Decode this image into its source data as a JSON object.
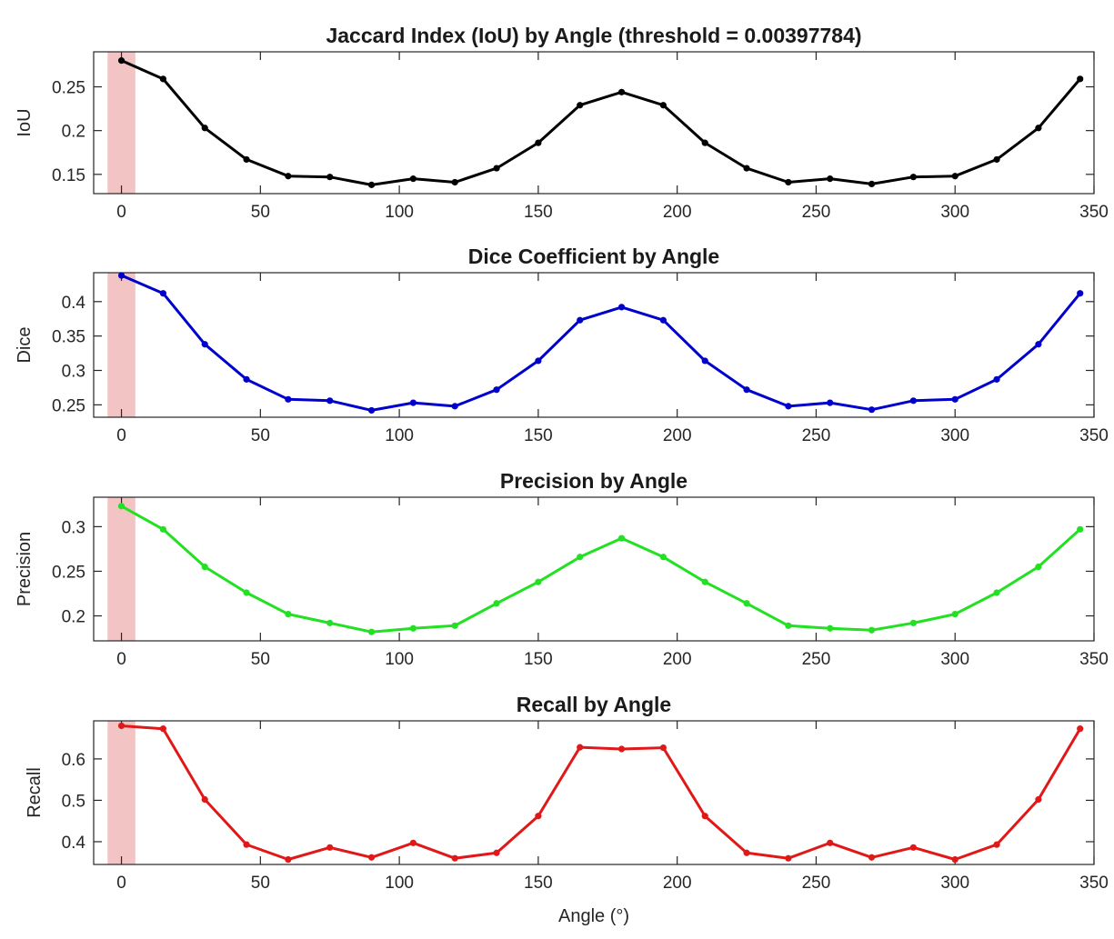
{
  "chart_data": [
    {
      "type": "line",
      "title": "Jaccard Index (IoU) by Angle (threshold = 0.00397784)",
      "xlabel": "",
      "ylabel": "IoU",
      "xlim": [
        -10,
        350
      ],
      "ylim": [
        0.128,
        0.29
      ],
      "xticks": [
        0,
        50,
        100,
        150,
        200,
        250,
        300,
        350
      ],
      "xtick_labels": [
        "0",
        "50",
        "100",
        "150",
        "200",
        "250",
        "300",
        "350"
      ],
      "yticks": [
        0.15,
        0.2,
        0.25
      ],
      "ytick_labels": [
        "0.15",
        "0.2",
        "0.25"
      ],
      "color": "#000000",
      "highlight": [
        -5,
        5
      ],
      "x": [
        0,
        15,
        30,
        45,
        60,
        75,
        90,
        105,
        120,
        135,
        150,
        165,
        180,
        195,
        210,
        225,
        240,
        255,
        270,
        285,
        300,
        315,
        330,
        345
      ],
      "values": [
        0.28,
        0.259,
        0.203,
        0.167,
        0.148,
        0.147,
        0.138,
        0.145,
        0.141,
        0.157,
        0.186,
        0.229,
        0.244,
        0.229,
        0.186,
        0.157,
        0.141,
        0.145,
        0.139,
        0.147,
        0.148,
        0.167,
        0.203,
        0.259
      ]
    },
    {
      "type": "line",
      "title": "Dice Coefficient by Angle",
      "xlabel": "",
      "ylabel": "Dice",
      "xlim": [
        -10,
        350
      ],
      "ylim": [
        0.232,
        0.442
      ],
      "xticks": [
        0,
        50,
        100,
        150,
        200,
        250,
        300,
        350
      ],
      "xtick_labels": [
        "0",
        "50",
        "100",
        "150",
        "200",
        "250",
        "300",
        "350"
      ],
      "yticks": [
        0.25,
        0.3,
        0.35,
        0.4
      ],
      "ytick_labels": [
        "0.25",
        "0.3",
        "0.35",
        "0.4"
      ],
      "color": "#0000cc",
      "highlight": [
        -5,
        5
      ],
      "x": [
        0,
        15,
        30,
        45,
        60,
        75,
        90,
        105,
        120,
        135,
        150,
        165,
        180,
        195,
        210,
        225,
        240,
        255,
        270,
        285,
        300,
        315,
        330,
        345
      ],
      "values": [
        0.438,
        0.412,
        0.338,
        0.287,
        0.258,
        0.256,
        0.242,
        0.253,
        0.248,
        0.272,
        0.314,
        0.373,
        0.392,
        0.373,
        0.314,
        0.272,
        0.248,
        0.253,
        0.243,
        0.256,
        0.258,
        0.287,
        0.338,
        0.412
      ]
    },
    {
      "type": "line",
      "title": "Precision by Angle",
      "xlabel": "",
      "ylabel": "Precision",
      "xlim": [
        -10,
        350
      ],
      "ylim": [
        0.172,
        0.333
      ],
      "xticks": [
        0,
        50,
        100,
        150,
        200,
        250,
        300,
        350
      ],
      "xtick_labels": [
        "0",
        "50",
        "100",
        "150",
        "200",
        "250",
        "300",
        "350"
      ],
      "yticks": [
        0.2,
        0.25,
        0.3
      ],
      "ytick_labels": [
        "0.2",
        "0.25",
        "0.3"
      ],
      "color": "#22e022",
      "highlight": [
        -5,
        5
      ],
      "x": [
        0,
        15,
        30,
        45,
        60,
        75,
        90,
        105,
        120,
        135,
        150,
        165,
        180,
        195,
        210,
        225,
        240,
        255,
        270,
        285,
        300,
        315,
        330,
        345
      ],
      "values": [
        0.323,
        0.297,
        0.255,
        0.226,
        0.202,
        0.192,
        0.182,
        0.186,
        0.189,
        0.214,
        0.238,
        0.266,
        0.287,
        0.266,
        0.238,
        0.214,
        0.189,
        0.186,
        0.184,
        0.192,
        0.202,
        0.226,
        0.255,
        0.297
      ]
    },
    {
      "type": "line",
      "title": "Recall by Angle",
      "xlabel": "Angle (°)",
      "ylabel": "Recall",
      "xlim": [
        -10,
        350
      ],
      "ylim": [
        0.345,
        0.692
      ],
      "xticks": [
        0,
        50,
        100,
        150,
        200,
        250,
        300,
        350
      ],
      "xtick_labels": [
        "0",
        "50",
        "100",
        "150",
        "200",
        "250",
        "300",
        "350"
      ],
      "yticks": [
        0.4,
        0.5,
        0.6
      ],
      "ytick_labels": [
        "0.4",
        "0.5",
        "0.6"
      ],
      "color": "#e01818",
      "highlight": [
        -5,
        5
      ],
      "x": [
        0,
        15,
        30,
        45,
        60,
        75,
        90,
        105,
        120,
        135,
        150,
        165,
        180,
        195,
        210,
        225,
        240,
        255,
        270,
        285,
        300,
        315,
        330,
        345
      ],
      "values": [
        0.68,
        0.673,
        0.502,
        0.393,
        0.357,
        0.386,
        0.362,
        0.397,
        0.36,
        0.373,
        0.462,
        0.628,
        0.624,
        0.627,
        0.462,
        0.373,
        0.36,
        0.397,
        0.362,
        0.386,
        0.357,
        0.393,
        0.502,
        0.673
      ]
    }
  ]
}
